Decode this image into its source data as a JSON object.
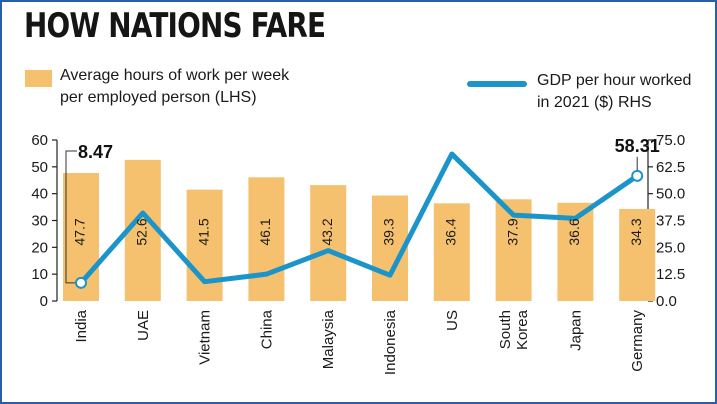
{
  "title": "HOW NATIONS FARE",
  "colors": {
    "bar": "#f6c16f",
    "line": "#1b95c9",
    "frame": "#2a5fa8"
  },
  "chart_data": {
    "type": "bar",
    "categories": [
      "India",
      "UAE",
      "Vietnam",
      "China",
      "Malaysia",
      "Indonesia",
      "US",
      "South Korea",
      "Japan",
      "Germany"
    ],
    "category_lines": [
      [
        "India"
      ],
      [
        "UAE"
      ],
      [
        "Vietnam"
      ],
      [
        "China"
      ],
      [
        "Malaysia"
      ],
      [
        "Indonesia"
      ],
      [
        "US"
      ],
      [
        "South",
        "Korea"
      ],
      [
        "Japan"
      ],
      [
        "Germany"
      ]
    ],
    "series": [
      {
        "name": "Average hours of work per week per employed person (LHS)",
        "type": "bar",
        "axis": "left",
        "values": [
          47.7,
          52.6,
          41.5,
          46.1,
          43.2,
          39.3,
          36.4,
          37.9,
          36.6,
          34.3
        ],
        "labels": [
          "47.7",
          "52.6",
          "41.5",
          "46.1",
          "43.2",
          "39.3",
          "36.4",
          "37.9",
          "36.6",
          "34.3"
        ]
      },
      {
        "name": "GDP per hour worked in 2021 ($) RHS",
        "type": "line",
        "axis": "right",
        "values": [
          8.47,
          41,
          9,
          12.5,
          23.5,
          12,
          68.5,
          40,
          38.5,
          58.31
        ]
      }
    ],
    "left_axis": {
      "ylim": [
        0,
        60
      ],
      "ticks": [
        "0",
        "10",
        "20",
        "30",
        "40",
        "50",
        "60"
      ]
    },
    "right_axis": {
      "ylim": [
        0,
        75
      ],
      "ticks": [
        "0.0",
        "12.5",
        "25.0",
        "37.5",
        "50.0",
        "62.5",
        "75.0"
      ]
    },
    "annotations": [
      {
        "category": "India",
        "text": "8.47"
      },
      {
        "category": "Germany",
        "text": "58.31"
      }
    ],
    "legend": {
      "bar_lines": [
        "Average hours of work per week",
        "per employed person (LHS)"
      ],
      "line_lines": [
        "GDP per hour worked",
        "in 2021 ($) RHS"
      ]
    }
  }
}
